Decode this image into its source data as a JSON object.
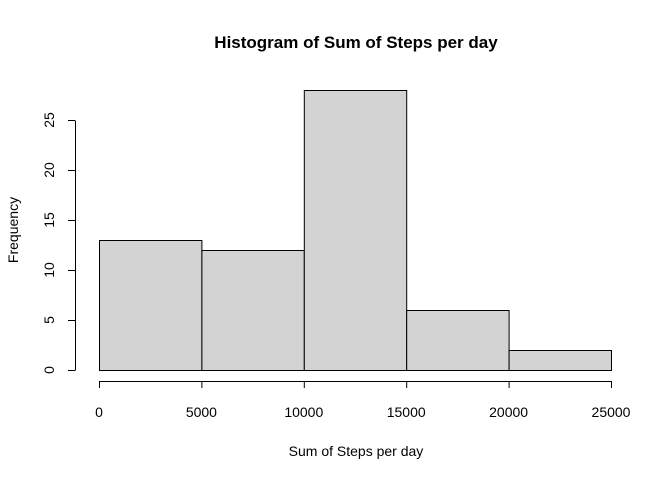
{
  "chart_data": {
    "type": "bar",
    "subtype": "histogram",
    "title": "Histogram of Sum of Steps per day",
    "xlabel": "Sum of Steps per day",
    "ylabel": "Frequency",
    "bins": [
      {
        "from": 0,
        "to": 5000,
        "count": 13
      },
      {
        "from": 5000,
        "to": 10000,
        "count": 12
      },
      {
        "from": 10000,
        "to": 15000,
        "count": 28
      },
      {
        "from": 15000,
        "to": 20000,
        "count": 6
      },
      {
        "from": 20000,
        "to": 25000,
        "count": 2
      }
    ],
    "xlim": [
      0,
      25000
    ],
    "ylim": [
      0,
      28
    ],
    "x_ticks": [
      {
        "value": 0,
        "label": "0"
      },
      {
        "value": 5000,
        "label": "5000"
      },
      {
        "value": 10000,
        "label": "10000"
      },
      {
        "value": 15000,
        "label": "15000"
      },
      {
        "value": 20000,
        "label": "20000"
      },
      {
        "value": 25000,
        "label": "25000"
      }
    ],
    "y_ticks": [
      {
        "value": 0,
        "label": "0"
      },
      {
        "value": 5,
        "label": "5"
      },
      {
        "value": 10,
        "label": "10"
      },
      {
        "value": 15,
        "label": "15"
      },
      {
        "value": 20,
        "label": "20"
      },
      {
        "value": 25,
        "label": "25"
      }
    ],
    "bar_fill": "#d3d3d3",
    "bar_border": "#000000",
    "grid": false
  }
}
